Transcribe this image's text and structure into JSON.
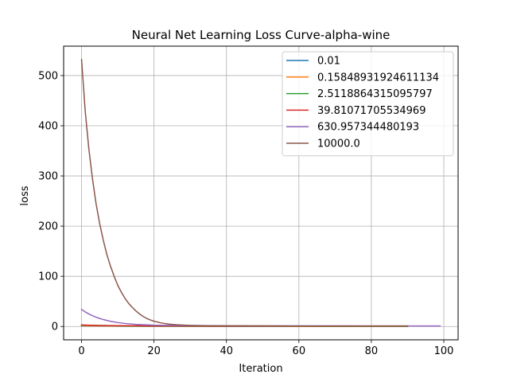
{
  "chart_data": {
    "type": "line",
    "title": "Neural Net Learning Loss Curve-alpha-wine",
    "xlabel": "Iteration",
    "ylabel": "loss",
    "xlim": [
      -4.95,
      103.95
    ],
    "ylim": [
      -26.6,
      558.6
    ],
    "xticks": [
      0,
      20,
      40,
      60,
      80,
      100
    ],
    "yticks": [
      0,
      100,
      200,
      300,
      400,
      500
    ],
    "grid": true,
    "legend_position": "top-right",
    "series": [
      {
        "name": "0.01",
        "color": "#1f77b4",
        "x": [
          0,
          10,
          20,
          30,
          40,
          50,
          60,
          70,
          80,
          90
        ],
        "y": [
          1.2,
          0.6,
          0.4,
          0.3,
          0.25,
          0.22,
          0.2,
          0.18,
          0.17,
          0.16
        ]
      },
      {
        "name": "0.15848931924611134",
        "color": "#ff7f0e",
        "x": [
          0,
          10,
          20,
          30,
          40,
          50,
          60,
          70,
          80,
          90
        ],
        "y": [
          1.5,
          0.7,
          0.45,
          0.35,
          0.3,
          0.27,
          0.25,
          0.23,
          0.22,
          0.21
        ]
      },
      {
        "name": "2.5118864315095797",
        "color": "#2ca02c",
        "x": [
          0,
          10,
          20,
          30,
          40,
          50,
          60,
          70,
          80,
          90
        ],
        "y": [
          2.5,
          1.2,
          0.8,
          0.6,
          0.55,
          0.5,
          0.48,
          0.46,
          0.45,
          0.44
        ]
      },
      {
        "name": "39.81071705534969",
        "color": "#d62728",
        "x": [
          0,
          5,
          10,
          20,
          30,
          40,
          50,
          60,
          70,
          80,
          90
        ],
        "y": [
          3.0,
          2.0,
          1.5,
          1.1,
          0.9,
          0.85,
          0.8,
          0.78,
          0.77,
          0.76,
          0.75
        ]
      },
      {
        "name": "630.957344480193",
        "color": "#9467bd",
        "x": [
          0,
          1,
          2,
          3,
          4,
          5,
          6,
          8,
          10,
          12,
          15,
          20,
          25,
          30,
          40,
          50,
          60,
          70,
          80,
          90,
          99
        ],
        "y": [
          34,
          29,
          25,
          21.5,
          18.5,
          16,
          13.8,
          10.3,
          7.8,
          6,
          4.2,
          2.6,
          1.9,
          1.6,
          1.3,
          1.2,
          1.15,
          1.1,
          1.05,
          1.02,
          1.0
        ]
      },
      {
        "name": "10000.0",
        "color": "#8c564b",
        "x": [
          0,
          1,
          2,
          3,
          4,
          5,
          6,
          7,
          8,
          9,
          10,
          11,
          12,
          13,
          14,
          15,
          16,
          17,
          18,
          19,
          20,
          22,
          24,
          26,
          28,
          30,
          35,
          40,
          50,
          60,
          70,
          80,
          90
        ],
        "y": [
          532,
          430,
          355,
          295,
          245,
          205,
          172,
          143,
          120,
          100,
          82,
          68,
          56,
          46,
          38,
          31,
          25,
          20,
          16,
          13,
          10.5,
          7,
          4.8,
          3.5,
          2.7,
          2.2,
          1.6,
          1.3,
          1.1,
          1.0,
          0.95,
          0.9,
          0.88
        ]
      }
    ]
  }
}
